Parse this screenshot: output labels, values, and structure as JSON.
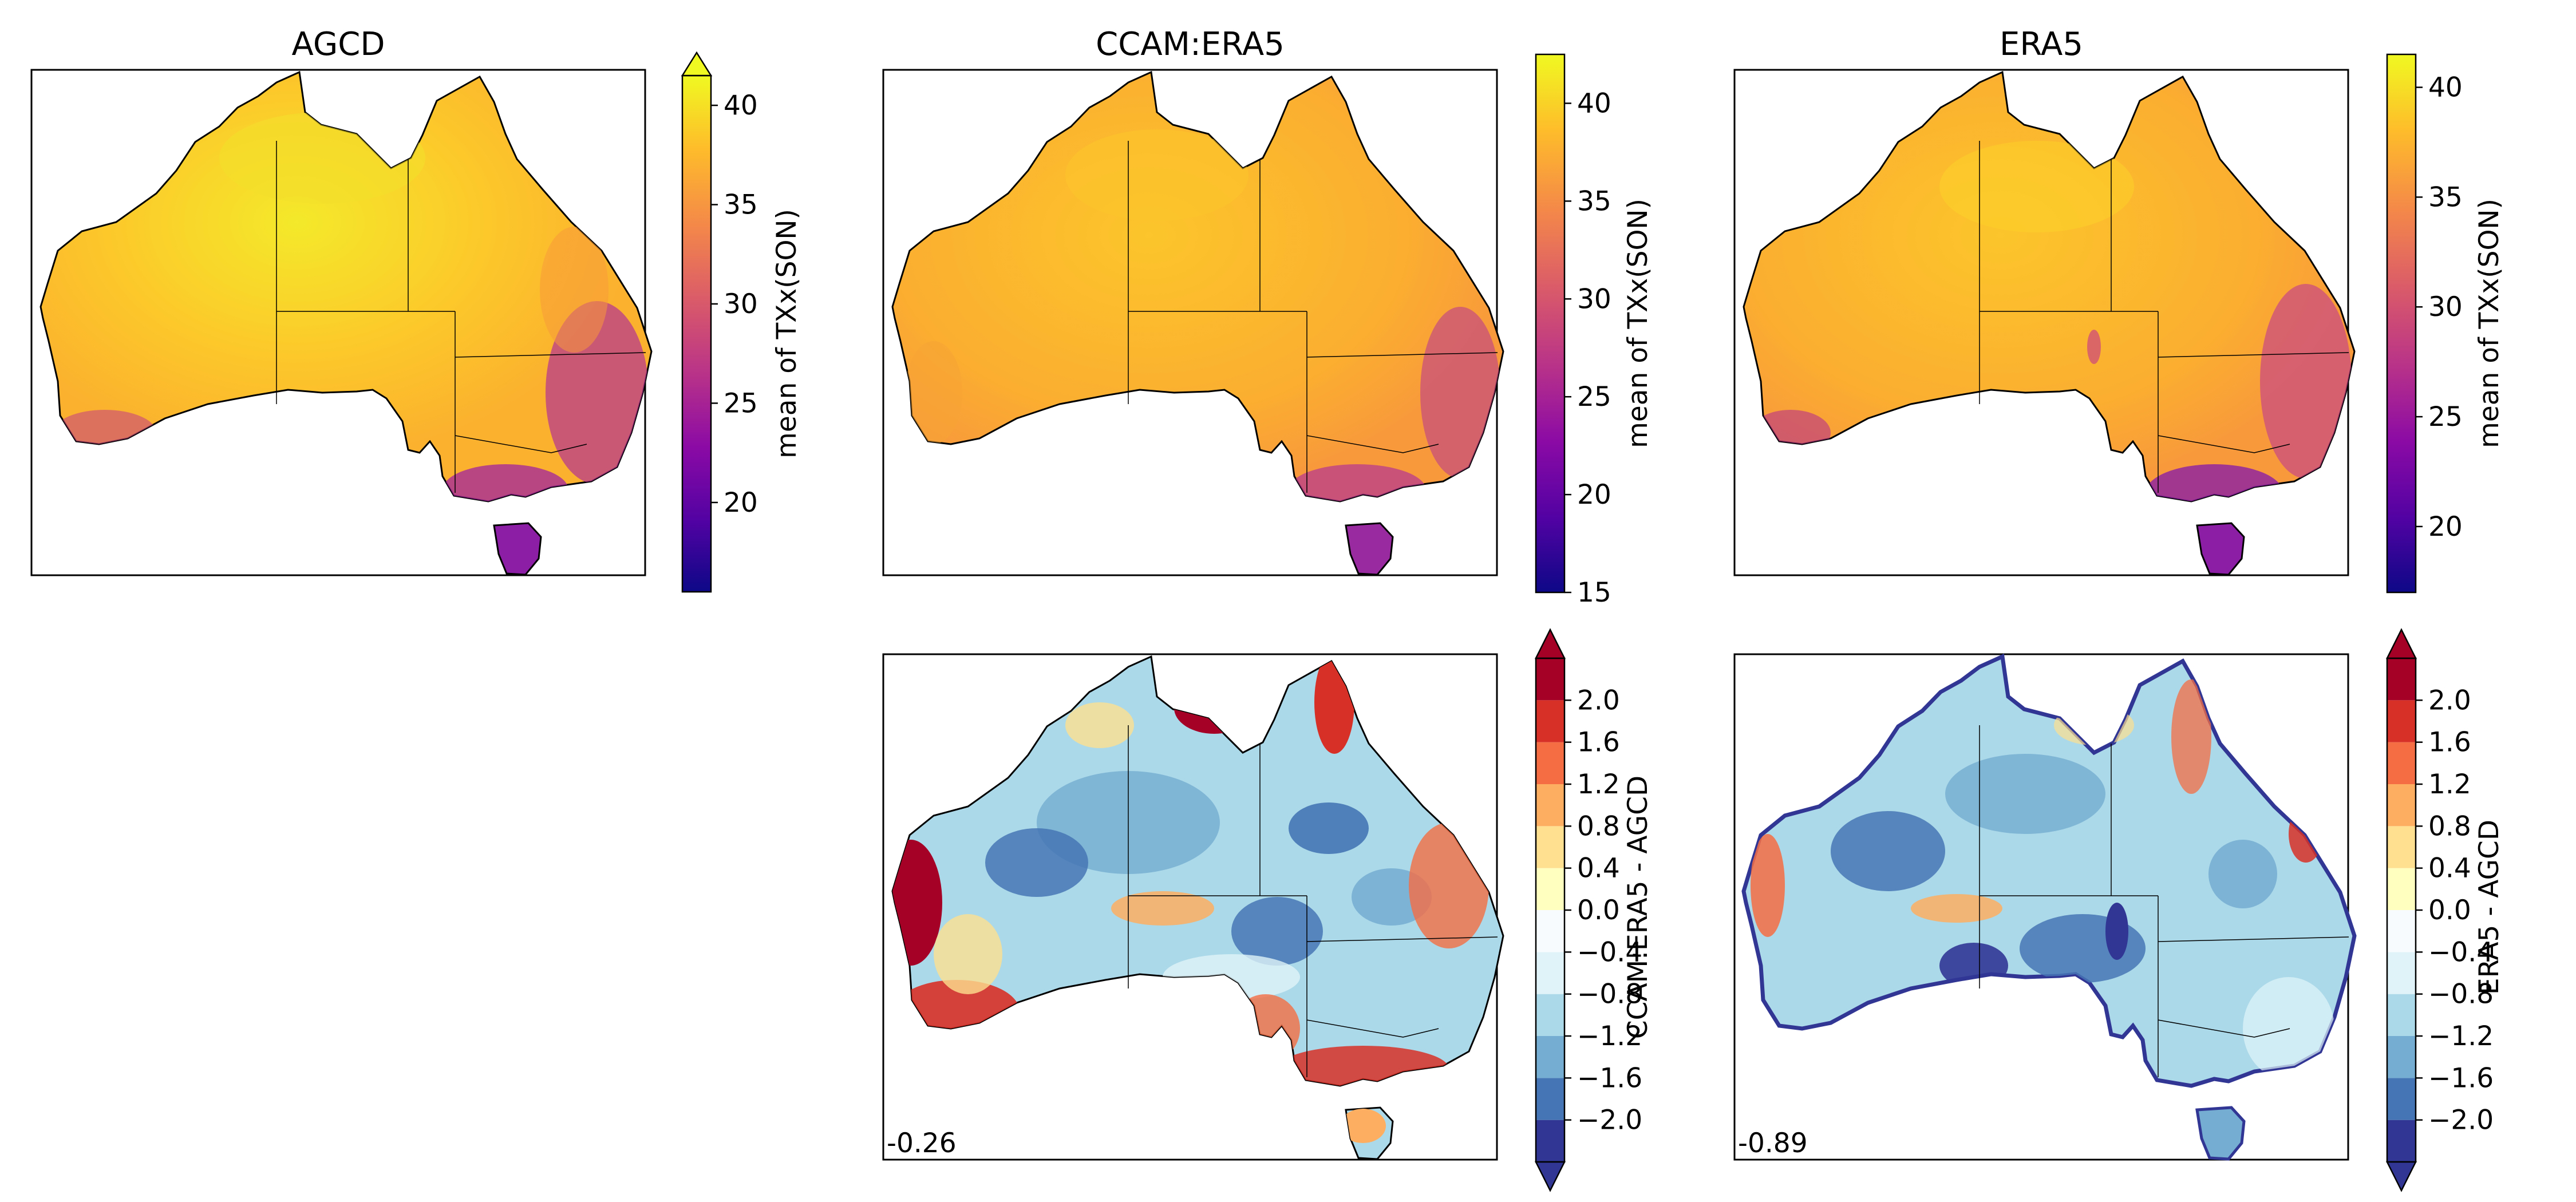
{
  "panels": [
    {
      "id": "agcd",
      "title": "AGCD",
      "corner": ""
    },
    {
      "id": "ccam",
      "title": "CCAM:ERA5",
      "corner": ""
    },
    {
      "id": "era5",
      "title": "ERA5",
      "corner": ""
    },
    {
      "id": "diff_ccam",
      "title": "",
      "corner": "-0.26"
    },
    {
      "id": "diff_era5",
      "title": "",
      "corner": "-0.89"
    }
  ],
  "colorbars": {
    "cb1": {
      "label": "mean of TXx(SON)",
      "ticks": [
        "20",
        "25",
        "30",
        "35",
        "40"
      ],
      "min": 15.5,
      "max": 41.5,
      "extend": "max"
    },
    "cb2": {
      "label": "mean of TXx(SON)",
      "ticks": [
        "15",
        "20",
        "25",
        "30",
        "35",
        "40"
      ],
      "min": 15,
      "max": 42.5,
      "extend": "none"
    },
    "cb3": {
      "label": "mean of TXx(SON)",
      "ticks": [
        "20",
        "25",
        "30",
        "35",
        "40"
      ],
      "min": 17,
      "max": 41.5,
      "extend": "none"
    },
    "cb4": {
      "label": "CCAM:ERA5 - AGCD",
      "ticks": [
        "2.0",
        "1.6",
        "1.2",
        "0.8",
        "0.4",
        "0.0",
        "−0.4",
        "−0.8",
        "−1.2",
        "−1.6",
        "−2.0"
      ],
      "extend": "both"
    },
    "cb5": {
      "label": "ERA5 - AGCD",
      "ticks": [
        "2.0",
        "1.6",
        "1.2",
        "0.8",
        "0.4",
        "0.0",
        "−0.4",
        "−0.8",
        "−1.2",
        "−1.6",
        "−2.0"
      ],
      "extend": "both"
    }
  },
  "colors": {
    "plasma": [
      "#0d0887",
      "#5302a3",
      "#8b0aa5",
      "#b83289",
      "#db5c68",
      "#f48849",
      "#febd2a",
      "#f0f921"
    ],
    "diverging": [
      "#313695",
      "#4575b4",
      "#74add1",
      "#abd9e9",
      "#e0f3f8",
      "#ffffbf",
      "#fee090",
      "#fdae61",
      "#f46d43",
      "#d73027",
      "#a50026"
    ],
    "land_warm": "#fbb829",
    "land_hot": "#f6e72a",
    "land_cool": "#c0408a",
    "diff_base_blue": "#a9cde3",
    "diff_red": "#c8172f"
  }
}
